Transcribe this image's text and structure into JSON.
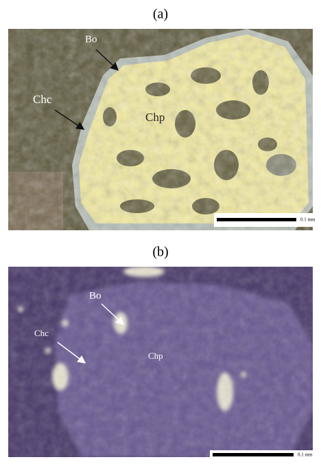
{
  "panels": [
    {
      "label": "(a)",
      "annotations": [
        "Bo",
        "Chc",
        "Chp"
      ],
      "scale_label": "0.1 mm"
    },
    {
      "label": "(b)",
      "annotations": [
        "Bo",
        "Chc",
        "Chp"
      ],
      "scale_label": "0.1 mm"
    }
  ]
}
